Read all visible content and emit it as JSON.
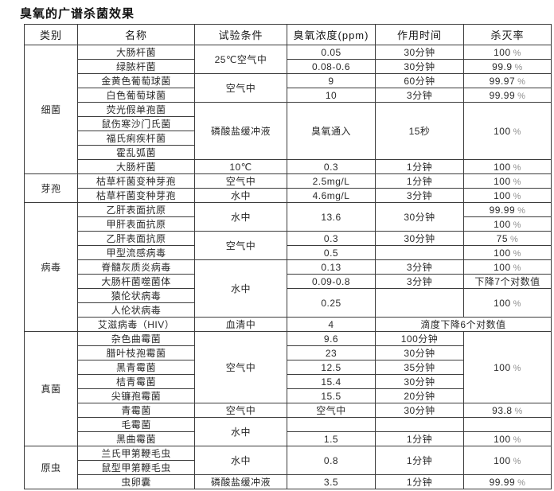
{
  "title": "臭氧的广谱杀菌效果",
  "table": {
    "columns": [
      "类别",
      "名称",
      "试验条件",
      "臭氧浓度(ppm)",
      "作用时间",
      "杀灭率"
    ],
    "rows": [
      {
        "cells": [
          {
            "text": "细菌",
            "rowspan": 9,
            "category": true
          },
          {
            "text": "大肠杆菌"
          },
          {
            "text": "25℃空气中",
            "rowspan": 2
          },
          {
            "text": "0.05"
          },
          {
            "text": "30分钟"
          },
          {
            "text": "100 %"
          }
        ]
      },
      {
        "cells": [
          {
            "text": "绿脓杆菌"
          },
          {
            "text": "0.08-0.6"
          },
          {
            "text": "30分钟"
          },
          {
            "text": "99.9 %"
          }
        ]
      },
      {
        "cells": [
          {
            "text": "金黄色葡萄球菌"
          },
          {
            "text": "空气中",
            "rowspan": 2
          },
          {
            "text": "9"
          },
          {
            "text": "60分钟"
          },
          {
            "text": "99.97 %"
          }
        ]
      },
      {
        "cells": [
          {
            "text": "白色葡萄球菌"
          },
          {
            "text": "10"
          },
          {
            "text": "3分钟"
          },
          {
            "text": "99.99 %"
          }
        ]
      },
      {
        "cells": [
          {
            "text": "荧光假单孢菌"
          },
          {
            "text": "磷酸盐缓冲液",
            "rowspan": 4
          },
          {
            "text": "臭氧通入",
            "rowspan": 4
          },
          {
            "text": "15秒",
            "rowspan": 4
          },
          {
            "text": "100 %",
            "rowspan": 4
          }
        ]
      },
      {
        "cells": [
          {
            "text": "鼠伤寒沙门氏菌"
          }
        ]
      },
      {
        "cells": [
          {
            "text": "福氏痢疾杆菌"
          }
        ]
      },
      {
        "cells": [
          {
            "text": "霍乱弧菌"
          }
        ]
      },
      {
        "cells": [
          {
            "text": "大肠杆菌"
          },
          {
            "text": "10℃"
          },
          {
            "text": "0.3"
          },
          {
            "text": "1分钟"
          },
          {
            "text": "100 %"
          }
        ]
      },
      {
        "cells": [
          {
            "text": "芽孢",
            "rowspan": 2,
            "category": true
          },
          {
            "text": "枯草杆菌变种芽孢"
          },
          {
            "text": "空气中"
          },
          {
            "text": "2.5mg/L"
          },
          {
            "text": "1分钟"
          },
          {
            "text": "100 %"
          }
        ]
      },
      {
        "cells": [
          {
            "text": "枯草杆菌变种芽孢"
          },
          {
            "text": "水中"
          },
          {
            "text": "4.6mg/L"
          },
          {
            "text": "3分钟"
          },
          {
            "text": "100 %"
          }
        ]
      },
      {
        "cells": [
          {
            "text": "病毒",
            "rowspan": 9,
            "category": true
          },
          {
            "text": "乙肝表面抗原"
          },
          {
            "text": "水中",
            "rowspan": 2
          },
          {
            "text": "13.6",
            "rowspan": 2
          },
          {
            "text": "30分钟",
            "rowspan": 2
          },
          {
            "text": "99.99 %"
          }
        ]
      },
      {
        "cells": [
          {
            "text": "甲肝表面抗原"
          },
          {
            "text": "100 %"
          }
        ]
      },
      {
        "cells": [
          {
            "text": "乙肝表面抗原"
          },
          {
            "text": "空气中",
            "rowspan": 2
          },
          {
            "text": "0.3"
          },
          {
            "text": "30分钟"
          },
          {
            "text": "75 %"
          }
        ]
      },
      {
        "cells": [
          {
            "text": "甲型流感病毒"
          },
          {
            "text": "0.5"
          },
          {
            "text": ""
          },
          {
            "text": "100 %"
          }
        ]
      },
      {
        "cells": [
          {
            "text": "脊髓灰质炎病毒"
          },
          {
            "text": "水中",
            "rowspan": 4
          },
          {
            "text": "0.13"
          },
          {
            "text": "3分钟"
          },
          {
            "text": "100 %"
          }
        ]
      },
      {
        "cells": [
          {
            "text": "大肠杆菌噬菌体"
          },
          {
            "text": "0.09-0.8"
          },
          {
            "text": "3分钟"
          },
          {
            "text": "下降7个对数值"
          }
        ]
      },
      {
        "cells": [
          {
            "text": "猿伦状病毒"
          },
          {
            "text": "0.25",
            "rowspan": 2
          },
          {
            "text": "",
            "rowspan": 2
          },
          {
            "text": "100 %",
            "rowspan": 2
          }
        ]
      },
      {
        "cells": [
          {
            "text": "人伦状病毒"
          }
        ]
      },
      {
        "cells": [
          {
            "text": "艾滋病毒（HIV）"
          },
          {
            "text": "血清中"
          },
          {
            "text": "4"
          },
          {
            "text": "滴度下降6个对数值",
            "colspan": 2
          }
        ]
      },
      {
        "cells": [
          {
            "text": "真菌",
            "rowspan": 8,
            "category": true
          },
          {
            "text": "杂色曲霉菌"
          },
          {
            "text": "空气中",
            "rowspan": 5
          },
          {
            "text": "9.6"
          },
          {
            "text": "100分钟"
          },
          {
            "text": "100 %",
            "rowspan": 5
          }
        ]
      },
      {
        "cells": [
          {
            "text": "腊叶枝孢霉菌"
          },
          {
            "text": "23"
          },
          {
            "text": "30分钟"
          }
        ]
      },
      {
        "cells": [
          {
            "text": "黑青霉菌"
          },
          {
            "text": "12.5"
          },
          {
            "text": "35分钟"
          }
        ]
      },
      {
        "cells": [
          {
            "text": "桔青霉菌"
          },
          {
            "text": "15.4"
          },
          {
            "text": "30分钟"
          }
        ]
      },
      {
        "cells": [
          {
            "text": "尖镰孢霉菌"
          },
          {
            "text": "15.5"
          },
          {
            "text": "20分钟"
          }
        ]
      },
      {
        "cells": [
          {
            "text": "青霉菌"
          },
          {
            "text": "空气中"
          },
          {
            "text": "空气中"
          },
          {
            "text": "30分钟"
          },
          {
            "text": "93.8 %"
          }
        ]
      },
      {
        "cells": [
          {
            "text": "毛霉菌"
          },
          {
            "text": "水中",
            "rowspan": 2
          },
          {
            "text": ""
          },
          {
            "text": ""
          },
          {
            "text": ""
          }
        ]
      },
      {
        "cells": [
          {
            "text": "黑曲霉菌"
          },
          {
            "text": "1.5"
          },
          {
            "text": "1分钟"
          },
          {
            "text": "100 %"
          }
        ]
      },
      {
        "cells": [
          {
            "text": "原虫",
            "rowspan": 3,
            "category": true
          },
          {
            "text": "兰氏甲第鞭毛虫"
          },
          {
            "text": "水中",
            "rowspan": 2
          },
          {
            "text": "0.8",
            "rowspan": 2
          },
          {
            "text": "1分钟",
            "rowspan": 2
          },
          {
            "text": "100 %",
            "rowspan": 2
          }
        ]
      },
      {
        "cells": [
          {
            "text": "鼠型甲第鞭毛虫"
          }
        ]
      },
      {
        "cells": [
          {
            "text": "虫卵囊"
          },
          {
            "text": "磷酸盐缓冲液"
          },
          {
            "text": "3.5"
          },
          {
            "text": "1分钟"
          },
          {
            "text": "99.99 %"
          }
        ]
      }
    ]
  }
}
